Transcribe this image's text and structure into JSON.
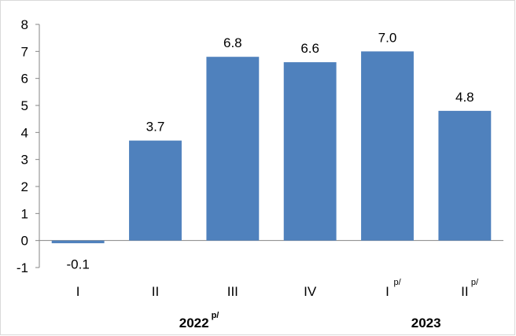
{
  "chart_data": {
    "type": "bar",
    "categories": [
      "I",
      "II",
      "III",
      "IV",
      "I",
      "II"
    ],
    "category_superscripts": [
      "",
      "",
      "",
      "",
      "p/",
      "p/"
    ],
    "values": [
      -0.1,
      3.7,
      6.8,
      6.6,
      7.0,
      4.8
    ],
    "data_labels": [
      "-0.1",
      "3.7",
      "6.8",
      "6.6",
      "7.0",
      "4.8"
    ],
    "groups": [
      {
        "label": "2022",
        "superscript": "p/",
        "categories": [
          0,
          1,
          2,
          3
        ]
      },
      {
        "label": "2023",
        "superscript": "",
        "categories": [
          4,
          5
        ]
      }
    ],
    "y_ticks": [
      "8",
      "7",
      "6",
      "5",
      "4",
      "3",
      "2",
      "1",
      "0",
      "-1"
    ],
    "ylim": [
      -1,
      8
    ],
    "grid": false,
    "bar_color": "#4f81bd",
    "title": "",
    "xlabel": "",
    "ylabel": ""
  }
}
